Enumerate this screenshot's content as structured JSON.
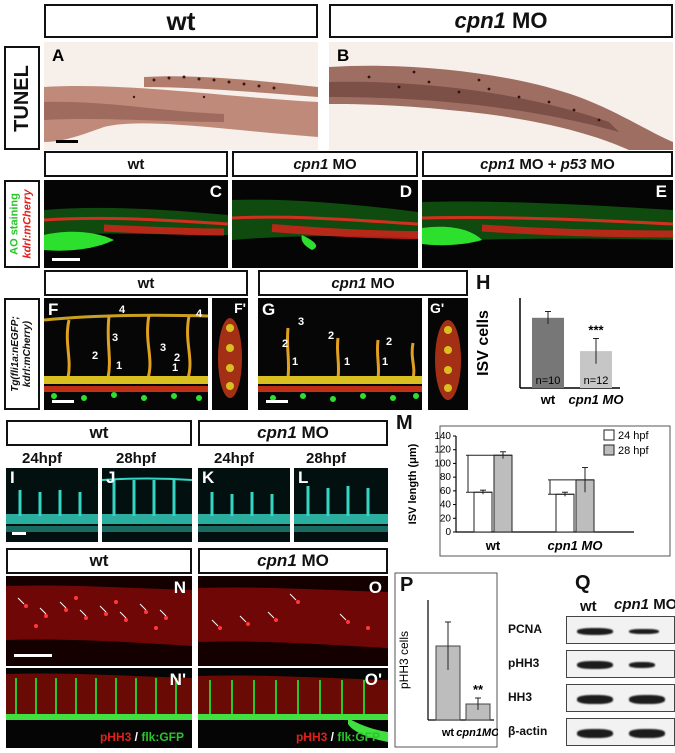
{
  "row1": {
    "wt": "wt",
    "mo": "cpn1",
    "mo_suffix": "MO",
    "side": "TUNEL",
    "panel_a": "A",
    "panel_b": "B"
  },
  "row2": {
    "wt": "wt",
    "mo": "cpn1",
    "mo_suffix": "MO",
    "mo_p53_a": "cpn1",
    "mo_p53_b": "MO +",
    "mo_p53_c": "p53",
    "mo_p53_d": "MO",
    "side_green": "AO staining",
    "side_red": "kdrl:mCherry",
    "panel_c": "C",
    "panel_d": "D",
    "panel_e": "E"
  },
  "row3": {
    "wt": "wt",
    "mo": "cpn1",
    "mo_suffix": "MO",
    "side": "Tg(fli1a:nEGFP;",
    "side2": "kdrl:mCherry)",
    "panel_f": "F",
    "panel_f2": "F'",
    "panel_g": "G",
    "panel_g2": "G'",
    "panel_h": "H",
    "f_numbers": [
      "4",
      "4",
      "3",
      "3",
      "2",
      "2",
      "1",
      "1"
    ],
    "g_numbers": [
      "3",
      "2",
      "2",
      "2",
      "1",
      "1",
      "1"
    ]
  },
  "chart_h": {
    "type": "bar",
    "ylabel": "ISV cells",
    "categories": [
      "wt",
      "cpn1 MO"
    ],
    "values": [
      3.9,
      2.05
    ],
    "errors": [
      0.35,
      0.7
    ],
    "n_labels": [
      "n=10",
      "n=12"
    ],
    "significance": "***",
    "ylim": [
      0,
      5
    ]
  },
  "row4": {
    "wt": "wt",
    "mo": "cpn1",
    "mo_suffix": "MO",
    "t1": "24hpf",
    "t2": "28hpf",
    "t3": "24hpf",
    "t4": "28hpf",
    "panel_i": "I",
    "panel_j": "J",
    "panel_k": "K",
    "panel_l": "L",
    "panel_m": "M"
  },
  "chart_m": {
    "type": "bar",
    "ylabel": "ISV length (μm)",
    "categories": [
      "wt",
      "cpn1 MO"
    ],
    "series": [
      {
        "name": "24 hpf",
        "values": [
          58,
          55
        ],
        "errors": [
          3,
          3
        ],
        "color": "#ffffff"
      },
      {
        "name": "28 hpf",
        "values": [
          112,
          76
        ],
        "errors": [
          5,
          18
        ],
        "color": "#bdbdbd"
      }
    ],
    "yticks": [
      0,
      20,
      40,
      60,
      80,
      100,
      120,
      140
    ],
    "ylim": [
      0,
      140
    ]
  },
  "row5": {
    "wt": "wt",
    "mo": "cpn1",
    "mo_suffix": "MO",
    "panel_n": "N",
    "panel_o": "O",
    "panel_n2": "N'",
    "panel_o2": "O'",
    "panel_p": "P",
    "panel_q": "Q",
    "cap_red": "pHH3",
    "cap_slash": " / ",
    "cap_green": "flk:GFP"
  },
  "chart_p": {
    "type": "bar",
    "ylabel": "pHH3 cells",
    "categories": [
      "wt",
      "cpn1MO"
    ],
    "values": [
      37,
      8
    ],
    "errors": [
      12,
      3
    ],
    "significance": "**",
    "ylim": [
      0,
      60
    ]
  },
  "western": {
    "col_wt": "wt",
    "col_mo": "cpn1",
    "col_mo_suffix": "MO",
    "rows": [
      "PCNA",
      "pHH3",
      "HH3",
      "β-actin"
    ]
  },
  "colors": {
    "green": "#29c529",
    "red": "#e0201a",
    "cyan": "#35d6c4"
  }
}
